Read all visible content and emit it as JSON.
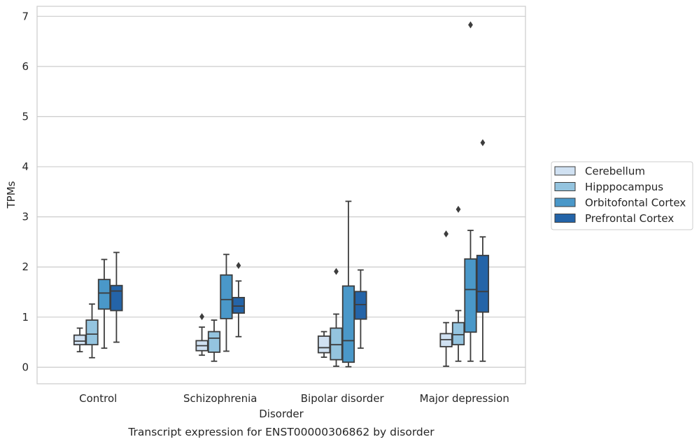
{
  "chart_data": {
    "type": "boxplot",
    "caption": "Transcript expression for ENST00000306862 by disorder",
    "xlabel": "Disorder",
    "ylabel": "TPMs",
    "ylim": [
      -0.33,
      7.2
    ],
    "yticks": [
      0,
      1,
      2,
      3,
      4,
      5,
      6,
      7
    ],
    "grid": true,
    "legend_position": "right",
    "categories": [
      "Control",
      "Schizophrenia",
      "Bipolar disorder",
      "Major depression"
    ],
    "series": [
      {
        "name": "Cerebellum",
        "color": "#d0e1f2",
        "boxes": [
          {
            "whislo": 0.31,
            "q1": 0.45,
            "med": 0.52,
            "q3": 0.64,
            "whishi": 0.78,
            "fliers": []
          },
          {
            "whislo": 0.24,
            "q1": 0.33,
            "med": 0.43,
            "q3": 0.53,
            "whishi": 0.8,
            "fliers": [
              1.01
            ]
          },
          {
            "whislo": 0.2,
            "q1": 0.29,
            "med": 0.39,
            "q3": 0.62,
            "whishi": 0.71,
            "fliers": []
          },
          {
            "whislo": 0.02,
            "q1": 0.41,
            "med": 0.55,
            "q3": 0.67,
            "whishi": 0.89,
            "fliers": [
              2.66
            ]
          }
        ]
      },
      {
        "name": "Hipppocampus",
        "color": "#94c4df",
        "boxes": [
          {
            "whislo": 0.19,
            "q1": 0.45,
            "med": 0.66,
            "q3": 0.94,
            "whishi": 1.26,
            "fliers": []
          },
          {
            "whislo": 0.12,
            "q1": 0.3,
            "med": 0.58,
            "q3": 0.71,
            "whishi": 0.94,
            "fliers": []
          },
          {
            "whislo": 0.02,
            "q1": 0.15,
            "med": 0.45,
            "q3": 0.78,
            "whishi": 1.06,
            "fliers": [
              1.91
            ]
          },
          {
            "whislo": 0.12,
            "q1": 0.45,
            "med": 0.65,
            "q3": 0.89,
            "whishi": 1.13,
            "fliers": [
              3.15
            ]
          }
        ]
      },
      {
        "name": "Orbitofontal Cortex",
        "color": "#4a98c9",
        "boxes": [
          {
            "whislo": 0.38,
            "q1": 1.16,
            "med": 1.48,
            "q3": 1.75,
            "whishi": 2.15,
            "fliers": []
          },
          {
            "whislo": 0.32,
            "q1": 0.97,
            "med": 1.35,
            "q3": 1.84,
            "whishi": 2.25,
            "fliers": []
          },
          {
            "whislo": 0.01,
            "q1": 0.1,
            "med": 0.53,
            "q3": 1.62,
            "whishi": 3.31,
            "fliers": []
          },
          {
            "whislo": 0.12,
            "q1": 0.7,
            "med": 1.55,
            "q3": 2.16,
            "whishi": 2.73,
            "fliers": [
              6.83
            ]
          }
        ]
      },
      {
        "name": "Prefrontal Cortex",
        "color": "#2464a8",
        "boxes": [
          {
            "whislo": 0.5,
            "q1": 1.13,
            "med": 1.52,
            "q3": 1.63,
            "whishi": 2.29,
            "fliers": []
          },
          {
            "whislo": 0.61,
            "q1": 1.08,
            "med": 1.22,
            "q3": 1.39,
            "whishi": 1.72,
            "fliers": [
              2.03
            ]
          },
          {
            "whislo": 0.38,
            "q1": 0.96,
            "med": 1.25,
            "q3": 1.51,
            "whishi": 1.94,
            "fliers": []
          },
          {
            "whislo": 0.12,
            "q1": 1.1,
            "med": 1.51,
            "q3": 2.23,
            "whishi": 2.6,
            "fliers": [
              4.48
            ]
          }
        ]
      }
    ]
  }
}
